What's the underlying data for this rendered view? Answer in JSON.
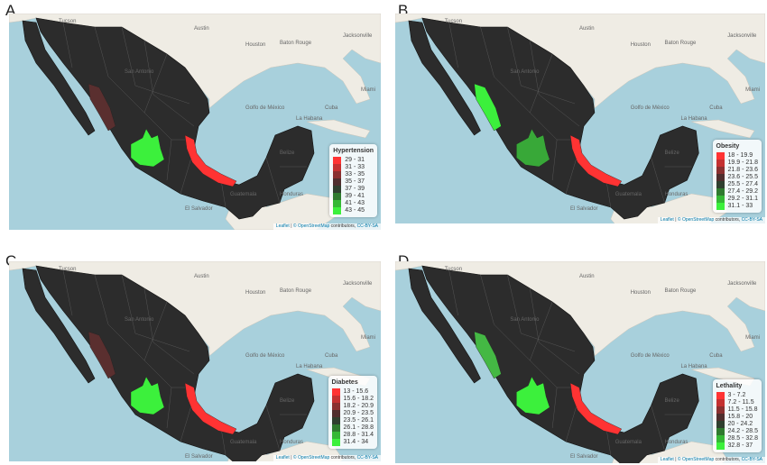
{
  "colors": {
    "ocean": "#a8d0dc",
    "land": "#efece4",
    "mexico": "#2c2c2c",
    "border": "#555555"
  },
  "places": [
    "Tucson",
    "Austin",
    "Houston",
    "San Antonio",
    "Baton Rouge",
    "Jacksonville",
    "Miami",
    "Golfo de México",
    "La Habana",
    "Cuba",
    "Belize",
    "Guatemala",
    "Honduras",
    "El Salvador"
  ],
  "attribution": {
    "leaflet": "Leaflet",
    "osm": "© OpenStreetMap",
    "rest": "contributors,",
    "license": "CC-BY-SA"
  },
  "panels": [
    {
      "letter": "A",
      "legend_title": "Hypertension",
      "legend": [
        [
          "29 - 31",
          "#ff3333"
        ],
        [
          "31 - 33",
          "#c43131"
        ],
        [
          "33 - 35",
          "#8a3030"
        ],
        [
          "35 - 37",
          "#4f2e2e"
        ],
        [
          "37 - 39",
          "#2f3f2f"
        ],
        [
          "39 - 41",
          "#2f7a2f"
        ],
        [
          "41 - 43",
          "#35b835"
        ],
        [
          "43 - 45",
          "#3cf03c"
        ]
      ],
      "highlighted_regions": {
        "sinaloa": "#5a2f2f",
        "jalisco": "#3cf03c",
        "veracruz": "#ff3333"
      }
    },
    {
      "letter": "B",
      "legend_title": "Obesity",
      "legend": [
        [
          "18 - 19.9",
          "#ff3333"
        ],
        [
          "19.9 - 21.8",
          "#c43131"
        ],
        [
          "21.8 - 23.6",
          "#8a3030"
        ],
        [
          "23.6 - 25.5",
          "#4f2e2e"
        ],
        [
          "25.5 - 27.4",
          "#2f3f2f"
        ],
        [
          "27.4 - 29.2",
          "#2f7a2f"
        ],
        [
          "29.2 - 31.1",
          "#35b835"
        ],
        [
          "31.1 - 33",
          "#3cf03c"
        ]
      ],
      "highlighted_regions": {
        "sinaloa": "#3cf03c",
        "jalisco": "#38a838",
        "veracruz": "#ff3333"
      }
    },
    {
      "letter": "C",
      "legend_title": "Diabetes",
      "legend": [
        [
          "13 - 15.6",
          "#ff3333"
        ],
        [
          "15.6 - 18.2",
          "#c43131"
        ],
        [
          "18.2 - 20.9",
          "#8a3030"
        ],
        [
          "20.9 - 23.5",
          "#4f2e2e"
        ],
        [
          "23.5 - 26.1",
          "#2f3f2f"
        ],
        [
          "26.1 - 28.8",
          "#2f7a2f"
        ],
        [
          "28.8 - 31.4",
          "#35b835"
        ],
        [
          "31.4 - 34",
          "#3cf03c"
        ]
      ],
      "highlighted_regions": {
        "sinaloa": "#5a2f2f",
        "jalisco": "#3cf03c",
        "veracruz": "#ff3333"
      }
    },
    {
      "letter": "D",
      "legend_title": "Lethality",
      "legend": [
        [
          "3 - 7.2",
          "#ff3333"
        ],
        [
          "7.2 - 11.5",
          "#c43131"
        ],
        [
          "11.5 - 15.8",
          "#8a3030"
        ],
        [
          "15.8 - 20",
          "#4f2e2e"
        ],
        [
          "20 - 24.2",
          "#2f3f2f"
        ],
        [
          "24.2 - 28.5",
          "#2f7a2f"
        ],
        [
          "28.5 - 32.8",
          "#35b835"
        ],
        [
          "32.8 - 37",
          "#3cf03c"
        ]
      ],
      "highlighted_regions": {
        "sinaloa": "#44b844",
        "jalisco": "#3cf03c",
        "veracruz": "#ff3333"
      }
    }
  ]
}
